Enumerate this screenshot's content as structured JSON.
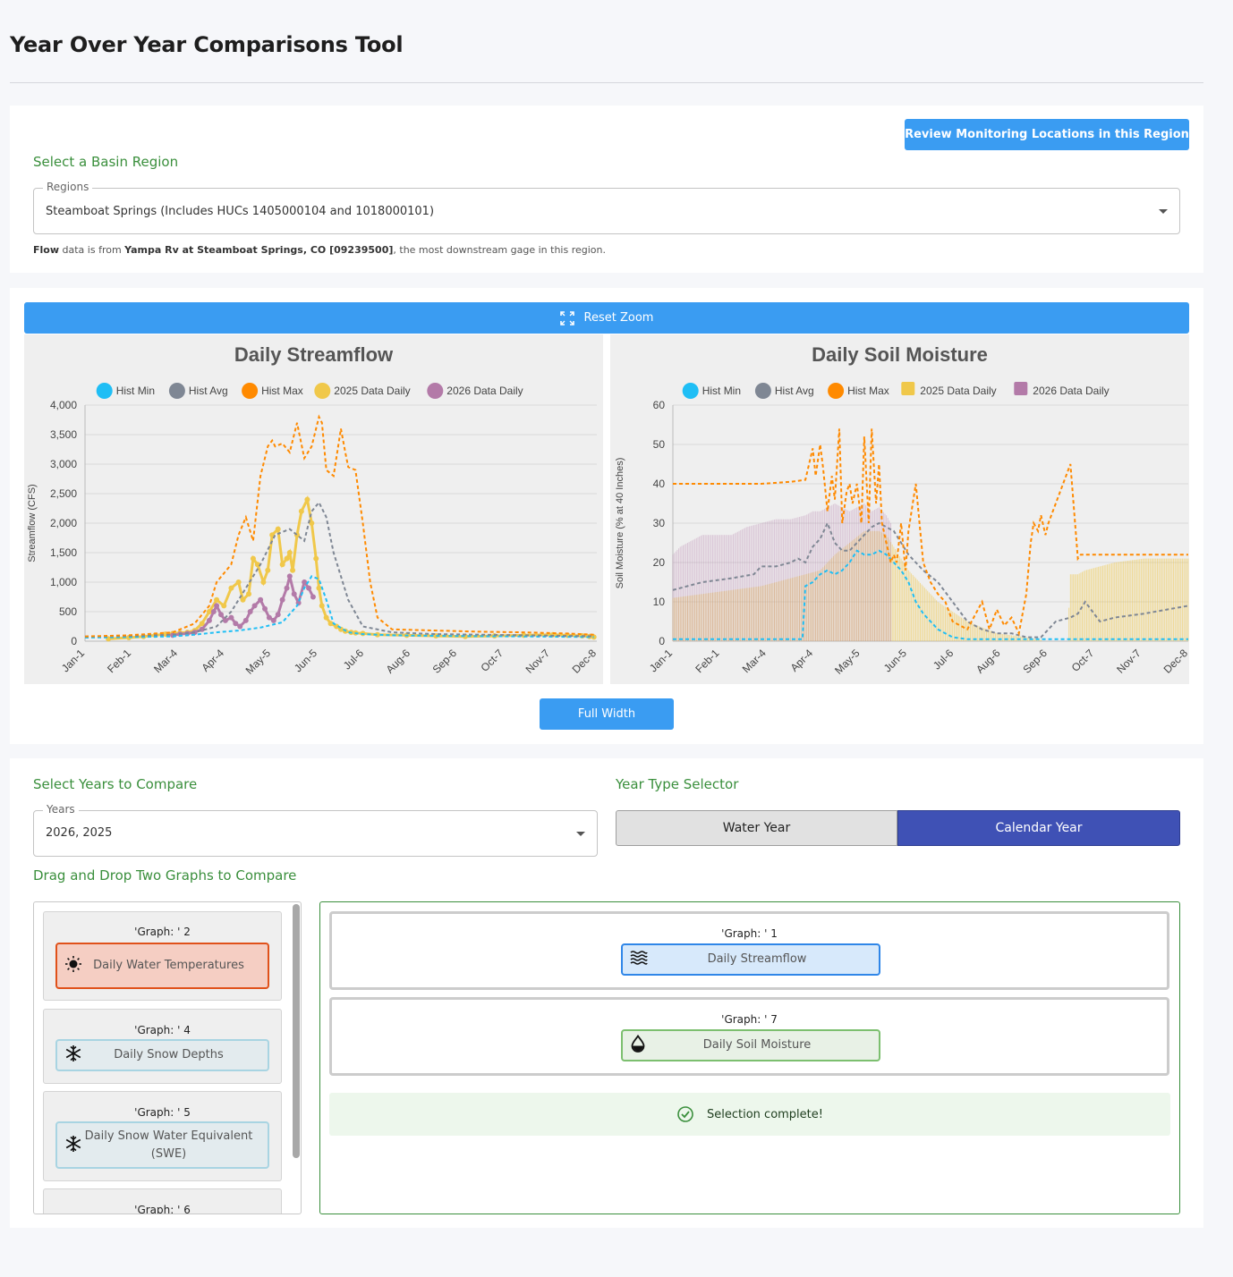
{
  "page_title": "Year Over Year Comparisons Tool",
  "region": {
    "review_button": "Review Monitoring Locations in this Region",
    "select_label": "Select a Basin Region",
    "field_label": "Regions",
    "field_value": "Steamboat Springs (Includes HUCs 1405000104 and 1018000101)",
    "note_bold1": "Flow",
    "note_text1": " data is from ",
    "note_bold2": "Yampa Rv at Steamboat Springs, CO [09239500]",
    "note_text2": ", the most downstream gage in this region."
  },
  "charts_panel": {
    "reset_zoom": "Reset Zoom",
    "full_width": "Full Width"
  },
  "legend": [
    "Hist Min",
    "Hist Avg",
    "Hist Max",
    "2025 Data Daily",
    "2026 Data Daily"
  ],
  "colors": {
    "hist_min": "#1fbef5",
    "hist_avg": "#7f8794",
    "hist_max": "#ff8a00",
    "d2025": "#f0c84a",
    "d2026": "#b37aa8",
    "accent": "#3a9cf2",
    "indigo": "#3f51b5",
    "green": "#3a8f3c"
  },
  "chart_data": [
    {
      "type": "line",
      "title": "Daily Streamflow",
      "ylabel": "Streamflow (CFS)",
      "xlabel": "",
      "ylim": [
        0,
        4000
      ],
      "yticks": [
        "0",
        "500",
        "1,000",
        "1,500",
        "2,000",
        "2,500",
        "3,000",
        "3,500",
        "4,000"
      ],
      "xticks": [
        "Jan-1",
        "Feb-1",
        "Mar-4",
        "Apr-4",
        "May-5",
        "Jun-5",
        "Jul-6",
        "Aug-6",
        "Sep-6",
        "Oct-7",
        "Nov-7",
        "Dec-8"
      ],
      "x_domain_days": [
        0,
        350
      ],
      "legend": "top",
      "grid": true,
      "series": [
        {
          "name": "Hist Min",
          "dashed": true,
          "x": [
            0,
            30,
            60,
            75,
            90,
            105,
            120,
            135,
            145,
            150,
            155,
            160,
            165,
            170,
            180,
            190,
            210,
            240,
            270,
            300,
            330,
            348
          ],
          "y": [
            60,
            70,
            80,
            110,
            150,
            180,
            230,
            320,
            600,
            900,
            1100,
            1050,
            700,
            300,
            150,
            120,
            100,
            90,
            85,
            80,
            75,
            70
          ]
        },
        {
          "name": "Hist Avg",
          "dashed": true,
          "x": [
            0,
            30,
            60,
            75,
            90,
            100,
            110,
            120,
            130,
            140,
            150,
            155,
            160,
            165,
            170,
            180,
            190,
            210,
            240,
            270,
            300,
            330,
            348
          ],
          "y": [
            80,
            90,
            110,
            150,
            250,
            500,
            900,
            1300,
            1800,
            1900,
            1700,
            2200,
            2350,
            2100,
            1500,
            700,
            250,
            150,
            120,
            110,
            100,
            90,
            85
          ]
        },
        {
          "name": "Hist Max",
          "dashed": true,
          "x": [
            0,
            30,
            60,
            75,
            85,
            90,
            100,
            105,
            110,
            115,
            120,
            125,
            128,
            130,
            135,
            140,
            145,
            150,
            155,
            160,
            162,
            165,
            170,
            175,
            178,
            180,
            185,
            190,
            195,
            200,
            210,
            240,
            270,
            300,
            330,
            348
          ],
          "y": [
            80,
            100,
            150,
            300,
            600,
            1000,
            1300,
            1800,
            2100,
            1700,
            2800,
            3300,
            3400,
            3300,
            3350,
            3200,
            3700,
            3100,
            3300,
            3800,
            3700,
            2900,
            2800,
            3600,
            3200,
            2950,
            2900,
            2000,
            1000,
            400,
            200,
            180,
            160,
            150,
            130,
            110
          ]
        },
        {
          "name": "2025 Data Daily",
          "dashed": false,
          "x": [
            16,
            30,
            40,
            48,
            55,
            60,
            65,
            70,
            75,
            80,
            85,
            90,
            95,
            100,
            105,
            108,
            112,
            115,
            118,
            122,
            125,
            128,
            132,
            135,
            138,
            140,
            142,
            145,
            148,
            152,
            155,
            158,
            160,
            162,
            165,
            168,
            172,
            175,
            178,
            182,
            185,
            190,
            200,
            220,
            240,
            260,
            280,
            300,
            320,
            330,
            340,
            345,
            348
          ],
          "y": [
            40,
            60,
            80,
            100,
            120,
            130,
            140,
            150,
            180,
            300,
            500,
            700,
            600,
            900,
            1000,
            700,
            800,
            1400,
            1300,
            1000,
            1200,
            1800,
            1900,
            1300,
            1400,
            1500,
            1200,
            1800,
            2200,
            2400,
            2000,
            1400,
            900,
            600,
            400,
            300,
            250,
            200,
            170,
            150,
            140,
            130,
            110,
            100,
            90,
            80,
            90,
            100,
            110,
            100,
            90,
            80,
            70
          ]
        },
        {
          "name": "2026 Data Daily",
          "dashed": false,
          "x": [
            60,
            65,
            70,
            75,
            80,
            85,
            88,
            90,
            93,
            96,
            100,
            103,
            106,
            110,
            113,
            116,
            120,
            123,
            126,
            129,
            132,
            135,
            138,
            140,
            143,
            146,
            150,
            153,
            156
          ],
          "y": [
            100,
            120,
            130,
            150,
            200,
            350,
            500,
            600,
            450,
            350,
            400,
            300,
            250,
            350,
            500,
            600,
            700,
            550,
            400,
            350,
            450,
            700,
            900,
            1100,
            800,
            650,
            1000,
            900,
            750
          ]
        }
      ]
    },
    {
      "type": "line",
      "title": "Daily Soil Moisture",
      "ylabel": "Soil Moisture (% at 40 Inches)",
      "xlabel": "",
      "ylim": [
        0,
        60
      ],
      "yticks": [
        "0",
        "10",
        "20",
        "30",
        "40",
        "50",
        "60"
      ],
      "xticks": [
        "Jan-1",
        "Feb-1",
        "Mar-4",
        "Apr-4",
        "May-5",
        "Jun-5",
        "Jul-6",
        "Aug-6",
        "Sep-6",
        "Oct-7",
        "Nov-7",
        "Dec-8"
      ],
      "x_domain_days": [
        0,
        350
      ],
      "legend": "top",
      "grid": true,
      "series": [
        {
          "name": "Hist Min",
          "dashed": true,
          "x": [
            0,
            30,
            60,
            80,
            88,
            90,
            95,
            100,
            105,
            110,
            115,
            120,
            125,
            130,
            135,
            140,
            145,
            150,
            155,
            160,
            165,
            170,
            180,
            190,
            200,
            210,
            220,
            230,
            240,
            250,
            260,
            270,
            280,
            290,
            300,
            320,
            350
          ],
          "y": [
            0.5,
            0.5,
            0.5,
            0.5,
            0.5,
            14,
            15,
            17,
            18,
            17,
            18,
            20,
            23,
            22,
            22,
            23,
            22,
            20,
            18,
            15,
            10,
            7,
            3,
            1,
            0.5,
            0.5,
            0.5,
            0.5,
            0.5,
            0.5,
            0.5,
            0.5,
            0.5,
            0.5,
            0.5,
            0.5,
            0.5
          ]
        },
        {
          "name": "Hist Avg",
          "dashed": true,
          "x": [
            0,
            20,
            40,
            55,
            60,
            70,
            80,
            85,
            90,
            95,
            100,
            105,
            110,
            115,
            120,
            125,
            130,
            135,
            140,
            145,
            150,
            155,
            160,
            165,
            170,
            180,
            190,
            200,
            210,
            220,
            230,
            240,
            250,
            260,
            270,
            275,
            280,
            290,
            300,
            320,
            350
          ],
          "y": [
            13,
            15,
            16,
            17,
            19,
            19,
            20,
            21,
            20,
            24,
            26,
            30,
            25,
            23,
            23,
            25,
            27,
            29,
            30,
            29,
            28,
            25,
            22,
            20,
            18,
            15,
            10,
            5,
            3,
            2,
            2,
            1,
            1,
            5,
            6,
            7,
            10,
            5,
            6,
            7,
            9
          ]
        },
        {
          "name": "Hist Max",
          "dashed": true,
          "x": [
            0,
            30,
            60,
            80,
            90,
            95,
            97,
            100,
            102,
            105,
            108,
            110,
            113,
            115,
            118,
            120,
            122,
            125,
            128,
            130,
            133,
            135,
            138,
            140,
            142,
            145,
            148,
            150,
            152,
            155,
            158,
            160,
            165,
            170,
            175,
            180,
            185,
            190,
            200,
            210,
            215,
            220,
            225,
            230,
            235,
            240,
            243,
            245,
            248,
            250,
            253,
            255,
            258,
            260,
            265,
            270,
            275,
            277,
            280,
            285,
            290,
            300,
            320,
            350
          ],
          "y": [
            40,
            40,
            40,
            40.5,
            41,
            49,
            42,
            50,
            44,
            33,
            42,
            36,
            54,
            30,
            38,
            40,
            35,
            40,
            30,
            52,
            30,
            54,
            35,
            45,
            30,
            25,
            20,
            22,
            20,
            30,
            18,
            28,
            40,
            20,
            15,
            12,
            10,
            5,
            3,
            10,
            3,
            8,
            4,
            6,
            2,
            12,
            25,
            30,
            28,
            32,
            27,
            30,
            33,
            35,
            40,
            45,
            21,
            22,
            22,
            22,
            22,
            22,
            22,
            22
          ]
        },
        {
          "name": "2025 Data Daily",
          "dashed": false,
          "bars": true,
          "x": [
            0,
            40,
            60,
            80,
            100,
            110,
            120,
            130,
            140,
            145,
            150,
            160,
            180,
            200,
            220,
            240,
            255,
            260,
            268,
            270,
            275,
            280,
            300,
            320,
            350
          ],
          "y": [
            11,
            13,
            14,
            16,
            18,
            22,
            25,
            28,
            28,
            27,
            24,
            18,
            10,
            5,
            2,
            1,
            0,
            0,
            0,
            17,
            17,
            18,
            20,
            21,
            21
          ]
        },
        {
          "name": "2026 Data Daily",
          "dashed": false,
          "bars": true,
          "x": [
            0,
            5,
            10,
            15,
            20,
            30,
            40,
            50,
            60,
            70,
            80,
            90,
            95,
            100,
            105,
            110,
            115,
            120,
            125,
            130,
            135,
            140,
            145,
            148
          ],
          "y": [
            22,
            24,
            25,
            26,
            27,
            27,
            27,
            29,
            30,
            31,
            31,
            32,
            33,
            33,
            34,
            35,
            34,
            33,
            34,
            35,
            33,
            34,
            32,
            30
          ]
        }
      ]
    }
  ],
  "years": {
    "select_label": "Select Years to Compare",
    "field_label": "Years",
    "field_value": "2026, 2025"
  },
  "year_type": {
    "label": "Year Type Selector",
    "options": [
      "Water Year",
      "Calendar Year"
    ],
    "selected": "Calendar Year"
  },
  "dragdrop": {
    "label": "Drag and Drop Two Graphs to Compare",
    "available": [
      {
        "title": "'Graph: ' 2",
        "name": "Daily Water Temperatures",
        "icon": "sun-icon"
      },
      {
        "title": "'Graph: ' 4",
        "name": "Daily Snow Depths",
        "icon": "snowflake-icon"
      },
      {
        "title": "'Graph: ' 5",
        "name": "Daily Snow Water Equivalent (SWE)",
        "icon": "snowflake-icon"
      },
      {
        "title": "'Graph: ' 6",
        "name": "",
        "icon": ""
      }
    ],
    "selected": [
      {
        "title": "'Graph: ' 1",
        "name": "Daily Streamflow",
        "icon": "waves-icon"
      },
      {
        "title": "'Graph: ' 7",
        "name": "Daily Soil Moisture",
        "icon": "water-drop-icon"
      }
    ],
    "status": "Selection complete!"
  }
}
